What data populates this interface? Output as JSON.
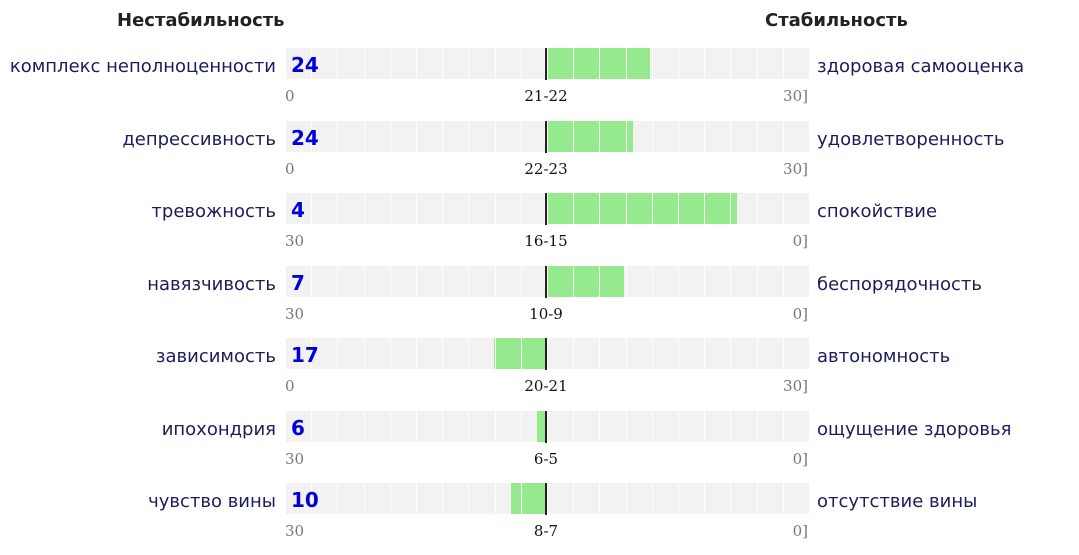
{
  "header": {
    "left": "Нестабильность",
    "right": "Стабильность"
  },
  "colors": {
    "fill": "#95ea8e",
    "track": "#f2f2f2",
    "score": "#0000dd",
    "label": "#1c1c5c"
  },
  "chart_data": {
    "type": "bar",
    "axis_center": 0,
    "scale_units_each_side": 30,
    "rows": [
      {
        "left_label": "комплекс неполноценности",
        "right_label": "здоровая самооценка",
        "score": "24",
        "scale_min": "0",
        "scale_mid": "21-22",
        "scale_max": "30]",
        "value": 12
      },
      {
        "left_label": "депрессивность",
        "right_label": "удовлетворенность",
        "score": "24",
        "scale_min": "0",
        "scale_mid": "22-23",
        "scale_max": "30]",
        "value": 10
      },
      {
        "left_label": "тревожность",
        "right_label": "спокойствие",
        "score": "4",
        "scale_min": "30",
        "scale_mid": "16-15",
        "scale_max": "0]",
        "value": 22
      },
      {
        "left_label": "навязчивость",
        "right_label": "беспорядочность",
        "score": "7",
        "scale_min": "30",
        "scale_mid": "10-9",
        "scale_max": "0]",
        "value": 9
      },
      {
        "left_label": "зависимость",
        "right_label": "автономность",
        "score": "17",
        "scale_min": "0",
        "scale_mid": "20-21",
        "scale_max": "30]",
        "value": -6
      },
      {
        "left_label": "ипохондрия",
        "right_label": "ощущение здоровья",
        "score": "6",
        "scale_min": "30",
        "scale_mid": "6-5",
        "scale_max": "0]",
        "value": -1
      },
      {
        "left_label": "чувство вины",
        "right_label": "отсутствие вины",
        "score": "10",
        "scale_min": "30",
        "scale_mid": "8-7",
        "scale_max": "0]",
        "value": -4
      }
    ]
  }
}
